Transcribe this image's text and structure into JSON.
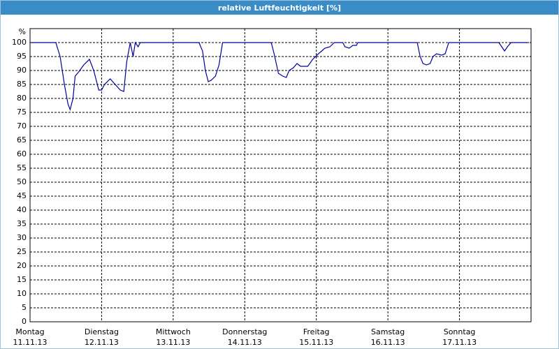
{
  "chart_data": {
    "type": "line",
    "title": "relative Luftfeuchtigkeit [%]",
    "y_label": "%",
    "x": [
      0,
      0.36,
      0.42,
      0.48,
      0.53,
      0.56,
      0.6,
      0.63,
      0.68,
      0.75,
      0.83,
      0.89,
      0.96,
      1.0,
      1.04,
      1.12,
      1.19,
      1.26,
      1.31,
      1.35,
      1.4,
      1.44,
      1.47,
      1.51,
      1.54,
      2.36,
      2.41,
      2.45,
      2.49,
      2.53,
      2.59,
      2.64,
      2.69,
      3.37,
      3.41,
      3.47,
      3.53,
      3.58,
      3.62,
      3.68,
      3.73,
      3.78,
      3.88,
      3.95,
      4.03,
      4.12,
      4.19,
      4.25,
      4.37,
      4.4,
      4.46,
      4.51,
      4.56,
      4.58,
      5.41,
      5.45,
      5.49,
      5.54,
      5.59,
      5.63,
      5.68,
      5.75,
      5.8,
      5.85,
      6.55,
      6.59,
      6.63,
      6.67,
      6.72,
      6.97
    ],
    "series": [
      {
        "name": "relative Luftfeuchtigkeit",
        "color": "#0000a0",
        "values": [
          100,
          100,
          95,
          85,
          78,
          76,
          80,
          88,
          89.5,
          92,
          94,
          90,
          83,
          83,
          85,
          87,
          85,
          83,
          82.5,
          93,
          100,
          95,
          100,
          98.5,
          100,
          100,
          97,
          90,
          86,
          86.5,
          88,
          92,
          100,
          100,
          96,
          89,
          88,
          87.5,
          90,
          91,
          92.5,
          91.5,
          91.5,
          94,
          96,
          98,
          98.5,
          100,
          100,
          98.5,
          98,
          99,
          99,
          100,
          100,
          95,
          92.5,
          92,
          92.5,
          95,
          96,
          95.5,
          96,
          100,
          100,
          98.5,
          97,
          98.5,
          100,
          100
        ]
      }
    ],
    "xlim": [
      0,
      7
    ],
    "ylim": [
      0,
      105
    ],
    "xticks": [
      {
        "value": 0,
        "label": "Montag"
      },
      {
        "value": 1,
        "label": "Dienstag"
      },
      {
        "value": 2,
        "label": "Mittwoch"
      },
      {
        "value": 3,
        "label": "Donnerstag"
      },
      {
        "value": 4,
        "label": "Freitag"
      },
      {
        "value": 5,
        "label": "Samstag"
      },
      {
        "value": 6,
        "label": "Sonntag"
      }
    ],
    "xtick_dates": [
      "11.11.13",
      "12.11.13",
      "13.11.13",
      "14.11.13",
      "15.11.13",
      "16.11.13",
      "17.11.13"
    ],
    "yticks": [
      0,
      5,
      10,
      15,
      20,
      25,
      30,
      35,
      40,
      45,
      50,
      55,
      60,
      65,
      70,
      75,
      80,
      85,
      90,
      95,
      100
    ],
    "grid": true
  }
}
